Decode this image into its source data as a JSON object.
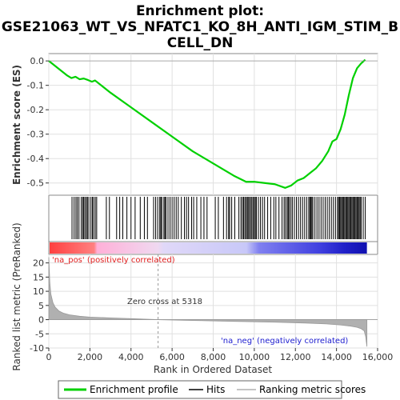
{
  "chart_data": {
    "type": "line",
    "title_lines": [
      "Enrichment plot:",
      "GSE21063_WT_VS_NFATC1_KO_8H_ANTI_IGM_STIM_B",
      "CELL_DN"
    ],
    "xlabel": "Rank in Ordered Dataset",
    "ylabel_top": "Enrichment score (ES)",
    "ylabel_bottom": "Ranked list metric (PreRanked)",
    "xlim": [
      0,
      16000
    ],
    "x_ticks": [
      0,
      2000,
      4000,
      6000,
      8000,
      10000,
      12000,
      14000,
      16000
    ],
    "x_tick_labels": [
      "0",
      "2,000",
      "4,000",
      "6,000",
      "8,000",
      "10,000",
      "12,000",
      "14,000",
      "16,000"
    ],
    "es_ylim": [
      -0.55,
      0.03
    ],
    "es_ticks": [
      0.0,
      -0.1,
      -0.2,
      -0.3,
      -0.4,
      -0.5
    ],
    "es_tick_labels": [
      "0.0",
      "-0.1",
      "-0.2",
      "-0.3",
      "-0.4",
      "-0.5"
    ],
    "metric_ylim": [
      -10,
      23
    ],
    "metric_ticks": [
      20,
      15,
      10,
      5,
      0,
      -5,
      -10
    ],
    "metric_tick_labels": [
      "20",
      "15",
      "10",
      "5",
      "0",
      "-5",
      "-10"
    ],
    "n_genes": 15480,
    "es_curve": {
      "x": [
        0,
        300,
        600,
        900,
        1100,
        1300,
        1500,
        1700,
        1900,
        2100,
        2250,
        2400,
        3000,
        4000,
        5000,
        6000,
        7000,
        8000,
        9000,
        9600,
        10000,
        10500,
        11000,
        11500,
        11800,
        12100,
        12400,
        12700,
        13000,
        13300,
        13600,
        13800,
        14000,
        14200,
        14400,
        14600,
        14800,
        15000,
        15200,
        15400
      ],
      "y": [
        0.0,
        -0.02,
        -0.04,
        -0.06,
        -0.07,
        -0.065,
        -0.075,
        -0.072,
        -0.078,
        -0.085,
        -0.08,
        -0.09,
        -0.13,
        -0.19,
        -0.25,
        -0.31,
        -0.37,
        -0.42,
        -0.47,
        -0.495,
        -0.495,
        -0.5,
        -0.505,
        -0.52,
        -0.51,
        -0.49,
        -0.48,
        -0.46,
        -0.44,
        -0.41,
        -0.37,
        -0.33,
        -0.32,
        -0.28,
        -0.22,
        -0.14,
        -0.07,
        -0.03,
        -0.01,
        0.005
      ]
    },
    "hits_ranks": [
      1130,
      1230,
      1320,
      1390,
      1470,
      1580,
      1650,
      1700,
      1760,
      1830,
      1880,
      1950,
      2050,
      2120,
      2180,
      2260,
      2330,
      2800,
      2950,
      3300,
      3450,
      3600,
      3800,
      4000,
      4200,
      4450,
      4650,
      4800,
      5100,
      5200,
      5300,
      5400,
      5450,
      5500,
      5600,
      5650,
      5700,
      5800,
      5900,
      6000,
      6100,
      6200,
      6300,
      6450,
      6600,
      6700,
      6800,
      6950,
      7050,
      7200,
      7400,
      7550,
      7700,
      8100,
      8250,
      8500,
      8650,
      8750,
      8800,
      8900,
      9050,
      9250,
      9350,
      9420,
      9480,
      9540,
      9600,
      9660,
      9700,
      9760,
      9820,
      9880,
      9940,
      10000,
      10050,
      10100,
      10200,
      10300,
      10400,
      10500,
      10650,
      10800,
      10950,
      11050,
      11200,
      11350,
      11450,
      11520,
      11600,
      11650,
      11700,
      11780,
      11850,
      11950,
      12050,
      12150,
      12250,
      12350,
      12450,
      12550,
      12650,
      12700,
      12750,
      12800,
      12850,
      12950,
      13050,
      13150,
      13250,
      13350,
      13450,
      13550,
      13650,
      13750,
      13850,
      13950,
      14050,
      14100,
      14150,
      14200,
      14250,
      14300,
      14350,
      14400,
      14450,
      14500,
      14550,
      14600,
      14650,
      14700,
      14750,
      14800,
      14850,
      14900,
      14950,
      15000,
      15050,
      15100,
      15150,
      15200,
      15300,
      15400
    ],
    "metric_curve": {
      "x": [
        0,
        50,
        100,
        200,
        300,
        500,
        700,
        1000,
        1500,
        2000,
        3000,
        4000,
        5318,
        7000,
        9000,
        11000,
        12500,
        13500,
        14200,
        14700,
        15000,
        15200,
        15350,
        15420,
        15480
      ],
      "y": [
        22,
        13,
        9,
        6,
        4.5,
        3.0,
        2.3,
        1.7,
        1.2,
        0.9,
        0.6,
        0.35,
        0.0,
        -0.3,
        -0.6,
        -0.9,
        -1.2,
        -1.5,
        -1.9,
        -2.3,
        -2.7,
        -3.2,
        -4.0,
        -6.0,
        -9.5
      ]
    },
    "zero_cross_rank": 5318,
    "annotations": {
      "zero_cross": "Zero cross at 5318",
      "na_pos": "'na_pos' (positively correlated)",
      "na_neg": "'na_neg' (negatively correlated)"
    },
    "legend": [
      "Enrichment profile",
      "Hits",
      "Ranking metric scores"
    ],
    "colors": {
      "es_line": "#00d000",
      "hits": "#000000",
      "metric_fill": "#b0b0b0",
      "pos_label": "#e02020",
      "neg_label": "#2020d0",
      "grid": "#e0e0e0"
    }
  }
}
